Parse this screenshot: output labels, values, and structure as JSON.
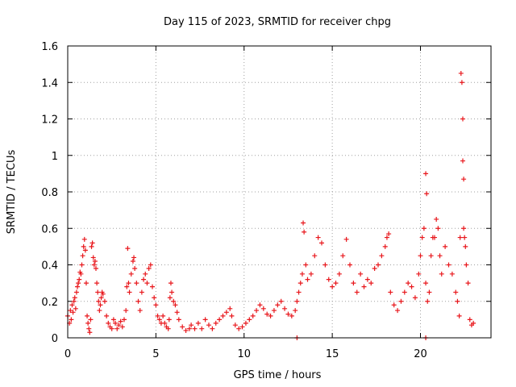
{
  "chart_data": {
    "type": "scatter",
    "title": "Day 115 of 2023, SRMTID for receiver chpg",
    "xlabel": "GPS time / hours",
    "ylabel": "SRMTID / TECUs",
    "xlim": [
      0,
      24
    ],
    "ylim": [
      0,
      1.6
    ],
    "x_ticks": [
      0,
      5,
      10,
      15,
      20
    ],
    "x_tick_labels": [
      "0",
      "5",
      "10",
      "15",
      "20"
    ],
    "y_ticks": [
      0,
      0.2,
      0.4,
      0.6,
      0.8,
      1.0,
      1.2,
      1.4,
      1.6
    ],
    "y_tick_labels": [
      "0",
      "0.2",
      "0.4",
      "0.6",
      "0.8",
      "1",
      "1.2",
      "1.4",
      "1.6"
    ],
    "grid": true,
    "marker": "plus",
    "color": "#e8161b",
    "series": [
      {
        "name": "SRMTID",
        "points": [
          [
            0.0,
            0.12
          ],
          [
            0.1,
            0.08
          ],
          [
            0.15,
            0.15
          ],
          [
            0.2,
            0.1
          ],
          [
            0.25,
            0.18
          ],
          [
            0.3,
            0.14
          ],
          [
            0.35,
            0.2
          ],
          [
            0.4,
            0.22
          ],
          [
            0.45,
            0.16
          ],
          [
            0.5,
            0.25
          ],
          [
            0.55,
            0.28
          ],
          [
            0.6,
            0.3
          ],
          [
            0.65,
            0.32
          ],
          [
            0.7,
            0.36
          ],
          [
            0.75,
            0.35
          ],
          [
            0.8,
            0.4
          ],
          [
            0.85,
            0.45
          ],
          [
            0.9,
            0.5
          ],
          [
            0.95,
            0.54
          ],
          [
            1.0,
            0.48
          ],
          [
            1.05,
            0.3
          ],
          [
            1.1,
            0.12
          ],
          [
            1.15,
            0.08
          ],
          [
            1.2,
            0.05
          ],
          [
            1.25,
            0.03
          ],
          [
            1.3,
            0.1
          ],
          [
            1.35,
            0.5
          ],
          [
            1.4,
            0.52
          ],
          [
            1.45,
            0.44
          ],
          [
            1.5,
            0.4
          ],
          [
            1.55,
            0.42
          ],
          [
            1.6,
            0.38
          ],
          [
            1.65,
            0.3
          ],
          [
            1.7,
            0.25
          ],
          [
            1.75,
            0.2
          ],
          [
            1.8,
            0.15
          ],
          [
            1.85,
            0.18
          ],
          [
            1.9,
            0.22
          ],
          [
            1.95,
            0.25
          ],
          [
            2.0,
            0.24
          ],
          [
            2.1,
            0.2
          ],
          [
            2.2,
            0.12
          ],
          [
            2.3,
            0.08
          ],
          [
            2.4,
            0.06
          ],
          [
            2.5,
            0.05
          ],
          [
            2.6,
            0.1
          ],
          [
            2.7,
            0.08
          ],
          [
            2.8,
            0.05
          ],
          [
            2.9,
            0.07
          ],
          [
            3.0,
            0.09
          ],
          [
            3.1,
            0.06
          ],
          [
            3.2,
            0.1
          ],
          [
            3.3,
            0.15
          ],
          [
            3.35,
            0.28
          ],
          [
            3.4,
            0.49
          ],
          [
            3.45,
            0.3
          ],
          [
            3.5,
            0.25
          ],
          [
            3.6,
            0.35
          ],
          [
            3.7,
            0.42
          ],
          [
            3.75,
            0.44
          ],
          [
            3.8,
            0.38
          ],
          [
            3.9,
            0.3
          ],
          [
            4.0,
            0.2
          ],
          [
            4.1,
            0.15
          ],
          [
            4.2,
            0.25
          ],
          [
            4.3,
            0.32
          ],
          [
            4.4,
            0.35
          ],
          [
            4.5,
            0.3
          ],
          [
            4.6,
            0.38
          ],
          [
            4.7,
            0.4
          ],
          [
            4.8,
            0.28
          ],
          [
            4.9,
            0.22
          ],
          [
            5.0,
            0.18
          ],
          [
            5.1,
            0.12
          ],
          [
            5.2,
            0.1
          ],
          [
            5.3,
            0.08
          ],
          [
            5.4,
            0.12
          ],
          [
            5.5,
            0.08
          ],
          [
            5.6,
            0.06
          ],
          [
            5.7,
            0.05
          ],
          [
            5.75,
            0.1
          ],
          [
            5.8,
            0.22
          ],
          [
            5.85,
            0.3
          ],
          [
            5.9,
            0.25
          ],
          [
            6.0,
            0.2
          ],
          [
            6.1,
            0.18
          ],
          [
            6.2,
            0.14
          ],
          [
            6.3,
            0.1
          ],
          [
            6.5,
            0.06
          ],
          [
            6.7,
            0.04
          ],
          [
            6.9,
            0.05
          ],
          [
            7.0,
            0.07
          ],
          [
            7.2,
            0.05
          ],
          [
            7.4,
            0.08
          ],
          [
            7.6,
            0.05
          ],
          [
            7.8,
            0.1
          ],
          [
            8.0,
            0.07
          ],
          [
            8.2,
            0.05
          ],
          [
            8.4,
            0.08
          ],
          [
            8.6,
            0.1
          ],
          [
            8.8,
            0.12
          ],
          [
            9.0,
            0.14
          ],
          [
            9.2,
            0.16
          ],
          [
            9.3,
            0.12
          ],
          [
            9.5,
            0.07
          ],
          [
            9.7,
            0.05
          ],
          [
            9.9,
            0.06
          ],
          [
            10.1,
            0.08
          ],
          [
            10.3,
            0.1
          ],
          [
            10.5,
            0.12
          ],
          [
            10.7,
            0.15
          ],
          [
            10.9,
            0.18
          ],
          [
            11.1,
            0.16
          ],
          [
            11.3,
            0.13
          ],
          [
            11.5,
            0.12
          ],
          [
            11.7,
            0.15
          ],
          [
            11.9,
            0.18
          ],
          [
            12.1,
            0.2
          ],
          [
            12.3,
            0.16
          ],
          [
            12.5,
            0.13
          ],
          [
            12.7,
            0.12
          ],
          [
            12.9,
            0.15
          ],
          [
            13.0,
            0.2
          ],
          [
            13.1,
            0.25
          ],
          [
            13.2,
            0.3
          ],
          [
            13.3,
            0.35
          ],
          [
            13.35,
            0.63
          ],
          [
            13.4,
            0.58
          ],
          [
            13.5,
            0.4
          ],
          [
            13.6,
            0.32
          ],
          [
            13.8,
            0.35
          ],
          [
            14.0,
            0.45
          ],
          [
            14.2,
            0.55
          ],
          [
            14.4,
            0.52
          ],
          [
            14.6,
            0.4
          ],
          [
            14.8,
            0.32
          ],
          [
            15.0,
            0.28
          ],
          [
            15.2,
            0.3
          ],
          [
            15.4,
            0.35
          ],
          [
            15.6,
            0.45
          ],
          [
            15.8,
            0.54
          ],
          [
            16.0,
            0.4
          ],
          [
            16.2,
            0.3
          ],
          [
            16.4,
            0.25
          ],
          [
            16.6,
            0.35
          ],
          [
            16.8,
            0.28
          ],
          [
            17.0,
            0.32
          ],
          [
            17.2,
            0.3
          ],
          [
            17.4,
            0.38
          ],
          [
            17.6,
            0.4
          ],
          [
            17.8,
            0.45
          ],
          [
            18.0,
            0.5
          ],
          [
            18.1,
            0.55
          ],
          [
            18.2,
            0.57
          ],
          [
            18.3,
            0.25
          ],
          [
            18.5,
            0.18
          ],
          [
            18.7,
            0.15
          ],
          [
            18.9,
            0.2
          ],
          [
            19.1,
            0.25
          ],
          [
            19.3,
            0.3
          ],
          [
            19.5,
            0.28
          ],
          [
            19.7,
            0.22
          ],
          [
            19.9,
            0.35
          ],
          [
            20.0,
            0.45
          ],
          [
            20.1,
            0.55
          ],
          [
            20.2,
            0.6
          ],
          [
            20.3,
            0.3
          ],
          [
            20.4,
            0.2
          ],
          [
            20.5,
            0.25
          ],
          [
            20.6,
            0.45
          ],
          [
            20.7,
            0.55
          ],
          [
            20.8,
            0.55
          ],
          [
            20.9,
            0.65
          ],
          [
            21.0,
            0.6
          ],
          [
            21.1,
            0.45
          ],
          [
            21.2,
            0.35
          ],
          [
            21.4,
            0.5
          ],
          [
            21.6,
            0.4
          ],
          [
            21.8,
            0.35
          ],
          [
            22.0,
            0.25
          ],
          [
            22.1,
            0.2
          ],
          [
            22.2,
            0.12
          ],
          [
            22.25,
            0.55
          ],
          [
            22.3,
            1.45
          ],
          [
            22.35,
            1.4
          ],
          [
            22.4,
            1.2
          ],
          [
            22.45,
            0.6
          ],
          [
            22.5,
            0.55
          ],
          [
            22.55,
            0.5
          ],
          [
            22.6,
            0.4
          ],
          [
            22.7,
            0.3
          ],
          [
            22.8,
            0.1
          ],
          [
            22.9,
            0.07
          ],
          [
            23.0,
            0.08
          ],
          [
            20.3,
            0.0
          ],
          [
            13.0,
            0.0
          ],
          [
            20.3,
            0.9
          ],
          [
            20.35,
            0.79
          ],
          [
            22.4,
            0.97
          ],
          [
            22.45,
            0.87
          ]
        ]
      }
    ]
  }
}
